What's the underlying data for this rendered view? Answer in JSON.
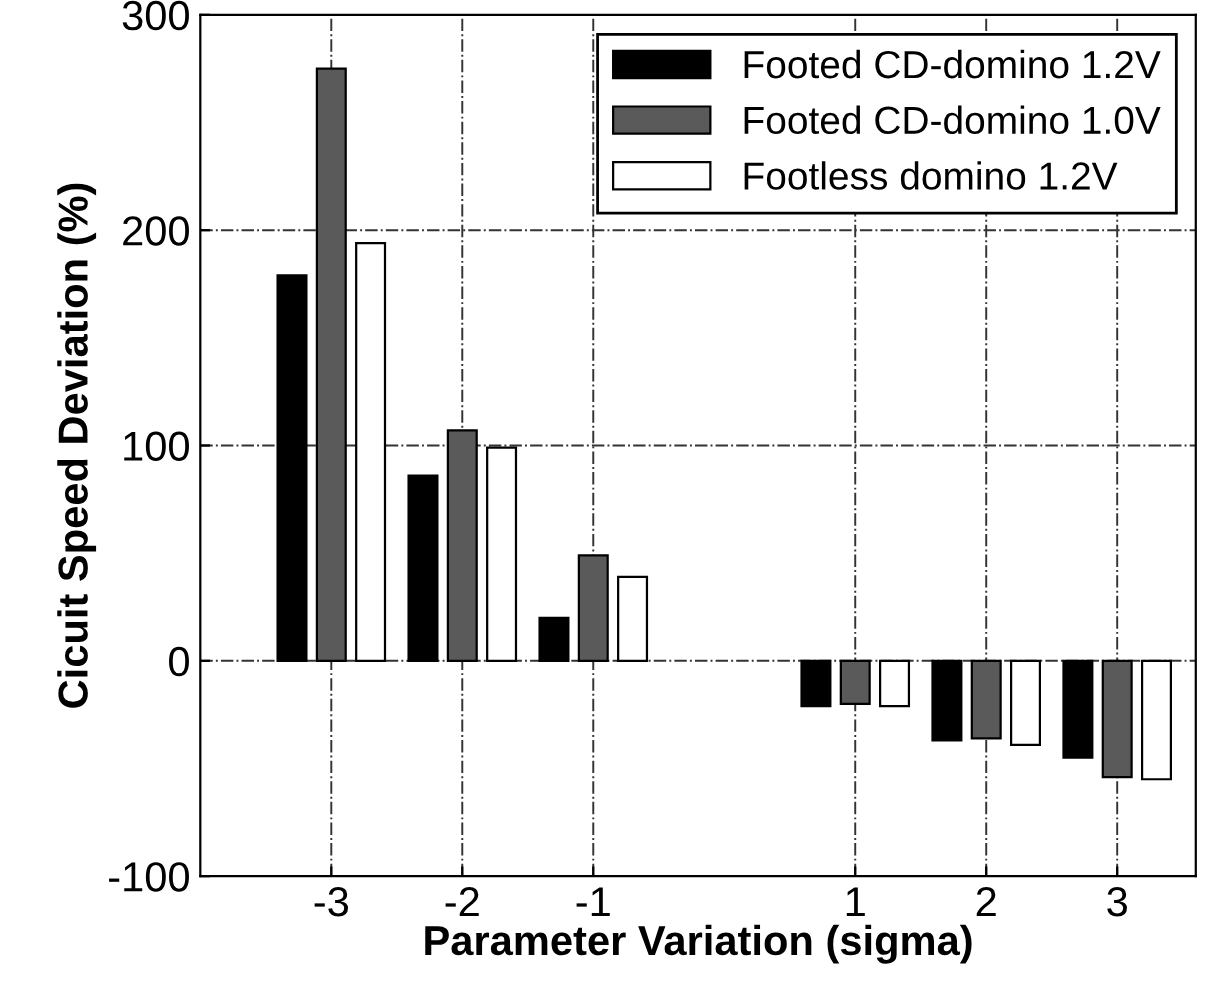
{
  "chart_data": {
    "type": "bar",
    "xlabel": "Parameter Variation (sigma)",
    "ylabel": "Cicuit Speed Deviation (%)",
    "x": [
      -3,
      -2,
      -1,
      1,
      2,
      3
    ],
    "series": [
      {
        "name": "Footed CD-domino 1.2V",
        "color": "#000000",
        "values": [
          179,
          86,
          20,
          -21,
          -37,
          -45
        ]
      },
      {
        "name": "Footed CD-domino 1.0V",
        "color": "#5a5a5a",
        "values": [
          275,
          107,
          49,
          -20,
          -36,
          -54
        ]
      },
      {
        "name": "Footless domino 1.2V",
        "color": "#ffffff",
        "values": [
          194,
          99,
          39,
          -21,
          -39,
          -55
        ]
      }
    ],
    "xlim": [
      -4,
      3.6
    ],
    "xticks": [
      -3,
      -2,
      -1,
      1,
      2,
      3
    ],
    "ylim": [
      -100,
      300
    ],
    "yticks": [
      -100,
      0,
      100,
      200,
      300
    ],
    "grid": true,
    "legend": "top right"
  }
}
